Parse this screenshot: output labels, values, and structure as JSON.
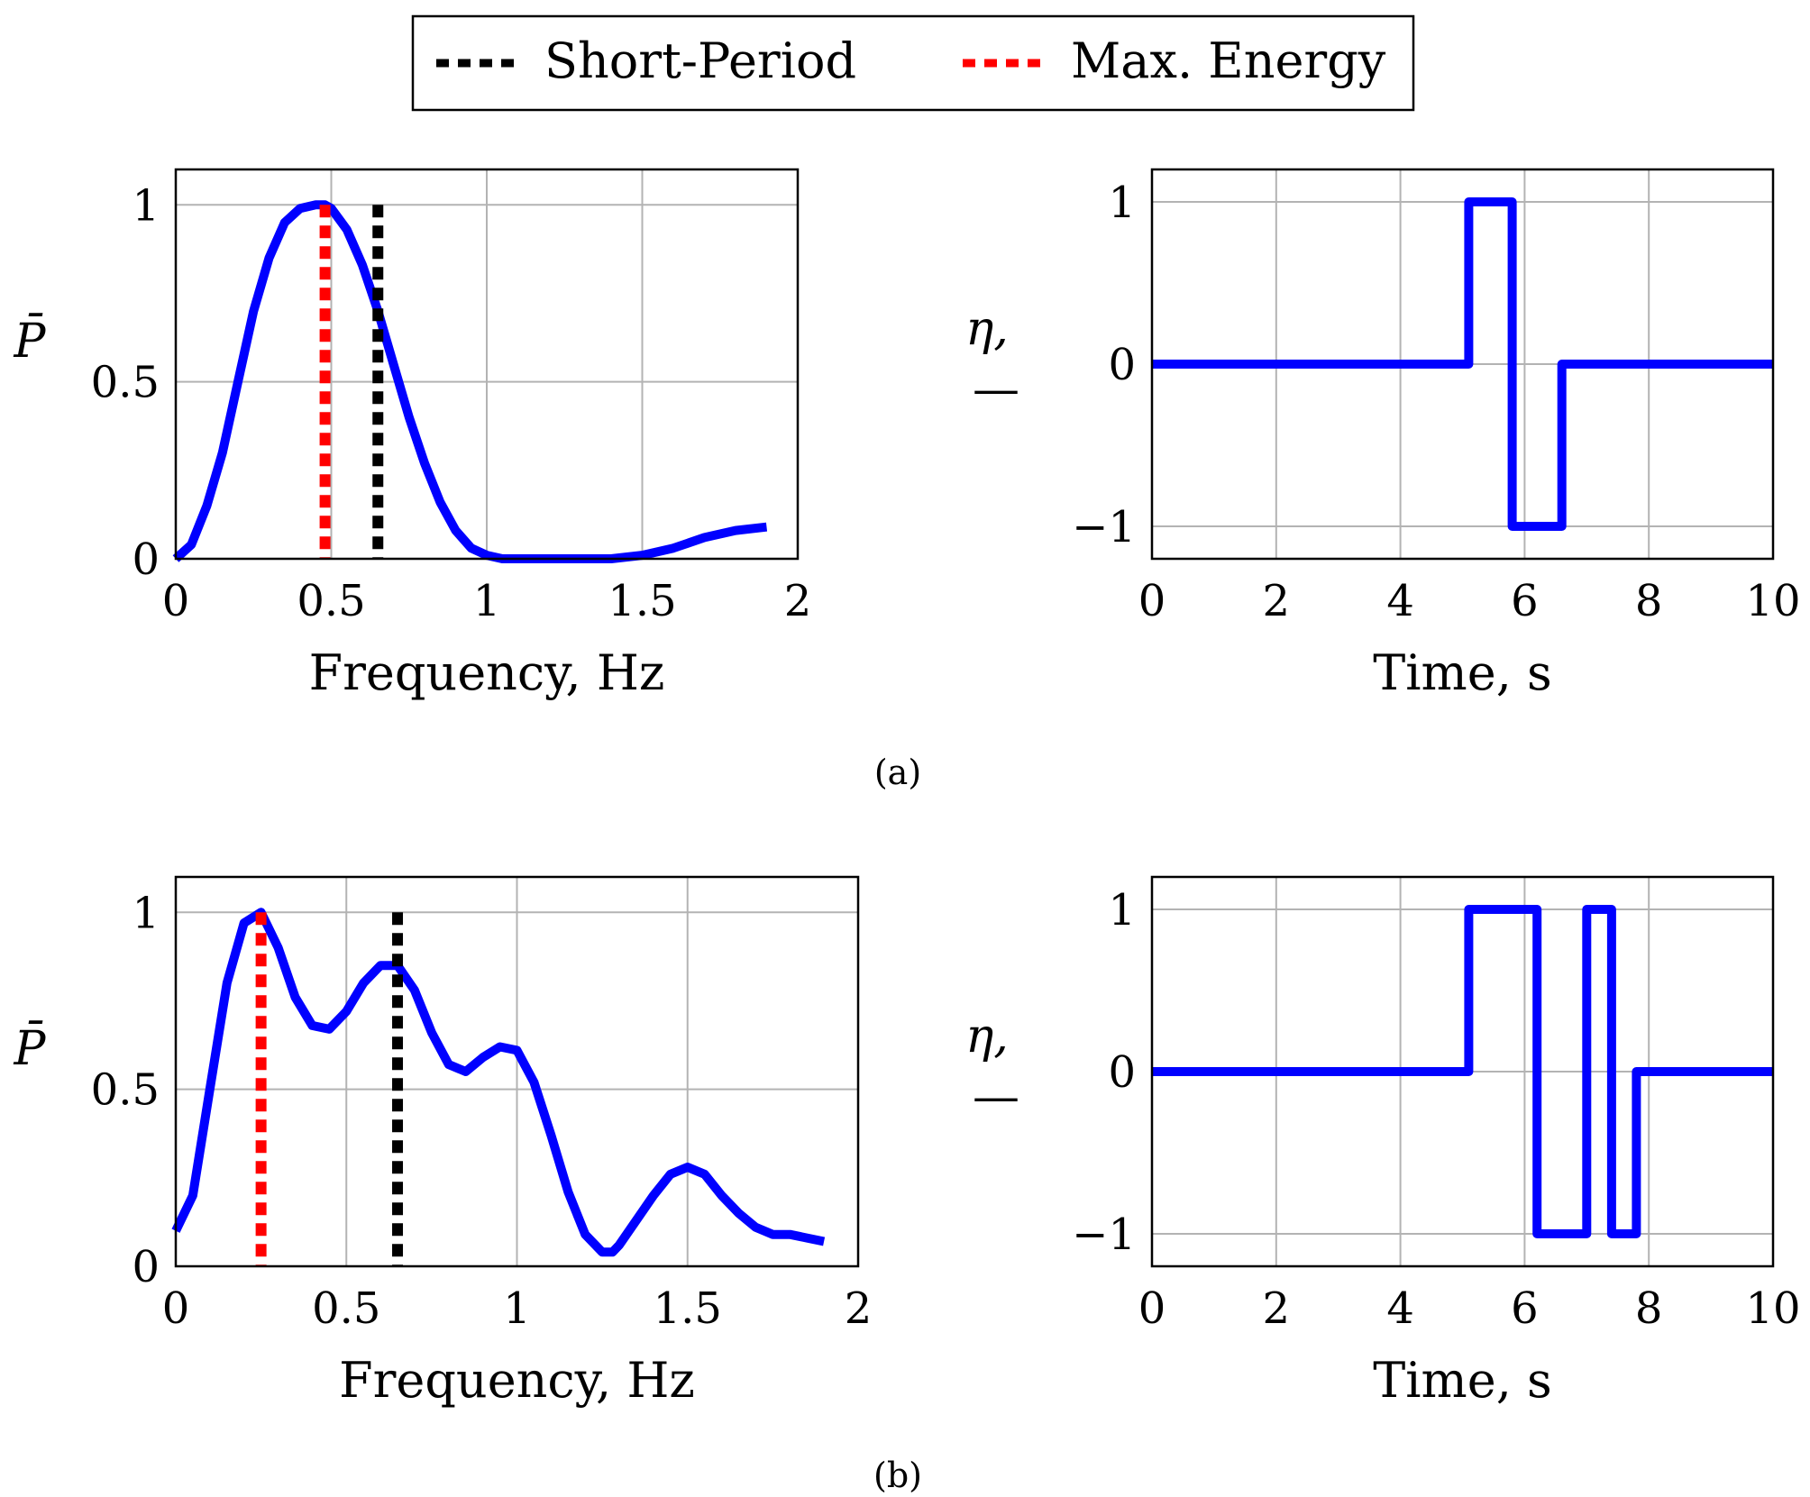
{
  "legend": {
    "items": [
      {
        "label": "Short-Period",
        "color": "#000000",
        "style": "dashed"
      },
      {
        "label": "Max. Energy",
        "color": "#ff0000",
        "style": "dashed"
      }
    ]
  },
  "colors": {
    "curve": "#0000ff",
    "grid": "#b3b3b3",
    "short_period": "#000000",
    "max_energy": "#ff0000"
  },
  "panels": [
    {
      "caption": "(a)"
    },
    {
      "caption": "(b)"
    }
  ],
  "chart_data": [
    {
      "id": "a-spectrum",
      "type": "line",
      "xlabel": "Frequency, Hz",
      "ylabel": "P̄",
      "xlim": [
        0,
        2
      ],
      "ylim": [
        0,
        1.1
      ],
      "xticks": [
        0,
        0.5,
        1,
        1.5,
        2
      ],
      "xtick_labels": [
        "0",
        "0.5",
        "1",
        "1.5",
        "2"
      ],
      "yticks": [
        0,
        0.5,
        1
      ],
      "ytick_labels": [
        "0",
        "0.5",
        "1"
      ],
      "grid": true,
      "series": [
        {
          "name": "P̄",
          "x": [
            0,
            0.05,
            0.1,
            0.15,
            0.2,
            0.25,
            0.3,
            0.35,
            0.4,
            0.45,
            0.48,
            0.5,
            0.55,
            0.6,
            0.65,
            0.7,
            0.75,
            0.8,
            0.85,
            0.9,
            0.95,
            1.0,
            1.05,
            1.1,
            1.2,
            1.3,
            1.4,
            1.5,
            1.6,
            1.7,
            1.8,
            1.9
          ],
          "y": [
            0,
            0.04,
            0.15,
            0.3,
            0.5,
            0.7,
            0.85,
            0.95,
            0.99,
            1.0,
            1.0,
            0.99,
            0.93,
            0.83,
            0.7,
            0.55,
            0.4,
            0.27,
            0.16,
            0.08,
            0.03,
            0.01,
            0.0,
            0.0,
            0.0,
            0.0,
            0.0,
            0.01,
            0.03,
            0.06,
            0.08,
            0.09
          ]
        }
      ],
      "vlines": [
        {
          "name": "Max. Energy",
          "x": 0.48,
          "y_top": 1.0
        },
        {
          "name": "Short-Period",
          "x": 0.65,
          "y_top": 1.0
        }
      ]
    },
    {
      "id": "a-input",
      "type": "line",
      "xlabel": "Time, s",
      "ylabel": "η, —",
      "xlim": [
        0,
        10
      ],
      "ylim": [
        -1.2,
        1.2
      ],
      "xticks": [
        0,
        2,
        4,
        6,
        8,
        10
      ],
      "xtick_labels": [
        "0",
        "2",
        "4",
        "6",
        "8",
        "10"
      ],
      "yticks": [
        -1,
        0,
        1
      ],
      "ytick_labels": [
        "−1",
        "0",
        "1"
      ],
      "grid": true,
      "series": [
        {
          "name": "η",
          "x": [
            0,
            5.1,
            5.1,
            5.8,
            5.8,
            6.6,
            6.6,
            10
          ],
          "y": [
            0,
            0,
            1,
            1,
            -1,
            -1,
            0,
            0
          ]
        }
      ]
    },
    {
      "id": "b-spectrum",
      "type": "line",
      "xlabel": "Frequency, Hz",
      "ylabel": "P̄",
      "xlim": [
        0,
        2
      ],
      "ylim": [
        0,
        1.1
      ],
      "xticks": [
        0,
        0.5,
        1,
        1.5,
        2
      ],
      "xtick_labels": [
        "0",
        "0.5",
        "1",
        "1.5",
        "2"
      ],
      "yticks": [
        0,
        0.5,
        1
      ],
      "ytick_labels": [
        "0",
        "0.5",
        "1"
      ],
      "grid": true,
      "series": [
        {
          "name": "P̄",
          "x": [
            0,
            0.05,
            0.1,
            0.15,
            0.2,
            0.25,
            0.3,
            0.35,
            0.4,
            0.45,
            0.5,
            0.55,
            0.6,
            0.65,
            0.7,
            0.75,
            0.8,
            0.85,
            0.9,
            0.95,
            1.0,
            1.05,
            1.1,
            1.15,
            1.2,
            1.25,
            1.28,
            1.3,
            1.35,
            1.4,
            1.45,
            1.5,
            1.55,
            1.6,
            1.65,
            1.7,
            1.75,
            1.8,
            1.85,
            1.9
          ],
          "y": [
            0.1,
            0.2,
            0.5,
            0.8,
            0.97,
            1.0,
            0.9,
            0.76,
            0.68,
            0.67,
            0.72,
            0.8,
            0.85,
            0.85,
            0.78,
            0.66,
            0.57,
            0.55,
            0.59,
            0.62,
            0.61,
            0.52,
            0.37,
            0.21,
            0.09,
            0.04,
            0.04,
            0.06,
            0.13,
            0.2,
            0.26,
            0.28,
            0.26,
            0.2,
            0.15,
            0.11,
            0.09,
            0.09,
            0.08,
            0.07
          ]
        }
      ],
      "vlines": [
        {
          "name": "Max. Energy",
          "x": 0.25,
          "y_top": 1.0
        },
        {
          "name": "Short-Period",
          "x": 0.65,
          "y_top": 1.0
        }
      ]
    },
    {
      "id": "b-input",
      "type": "line",
      "xlabel": "Time, s",
      "ylabel": "η, —",
      "xlim": [
        0,
        10
      ],
      "ylim": [
        -1.2,
        1.2
      ],
      "xticks": [
        0,
        2,
        4,
        6,
        8,
        10
      ],
      "xtick_labels": [
        "0",
        "2",
        "4",
        "6",
        "8",
        "10"
      ],
      "yticks": [
        -1,
        0,
        1
      ],
      "ytick_labels": [
        "−1",
        "0",
        "1"
      ],
      "grid": true,
      "series": [
        {
          "name": "η",
          "x": [
            0,
            5.1,
            5.1,
            6.2,
            6.2,
            7.0,
            7.0,
            7.4,
            7.4,
            7.8,
            7.8,
            10
          ],
          "y": [
            0,
            0,
            1,
            1,
            -1,
            -1,
            1,
            1,
            -1,
            -1,
            0,
            0
          ]
        }
      ]
    }
  ]
}
